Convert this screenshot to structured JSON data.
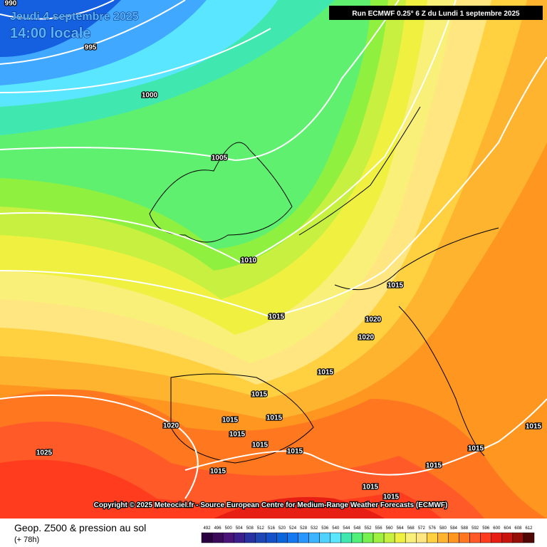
{
  "header": {
    "date": "Jeudi 4 septembre 2025",
    "time": "14:00 locale"
  },
  "run": "Run ECMWF 0.25° 6 Z du Lundi 1 septembre 2025",
  "copyright": "Copyright © 2025 Meteociel.fr - Source European Centre for Medium-Range Weather Forecasts (ECMWF)",
  "footer": {
    "title": "Geop. Z500 & pression au sol",
    "lead": "(+ 78h)"
  },
  "isobar_labels": [
    "990",
    "995",
    "1000",
    "1005",
    "1010",
    "1015",
    "1015",
    "1020",
    "1020",
    "1015",
    "1015",
    "1015",
    "1015",
    "1015",
    "1020",
    "1025",
    "1015",
    "1015",
    "1015",
    "1015",
    "1015",
    "1015",
    "1015",
    "1015"
  ],
  "colorbar": {
    "labels": [
      492,
      496,
      500,
      504,
      508,
      512,
      516,
      520,
      524,
      528,
      532,
      536,
      540,
      544,
      548,
      552,
      556,
      560,
      564,
      568,
      572,
      576,
      580,
      584,
      588,
      592,
      596,
      600,
      604,
      608,
      612
    ],
    "colors": [
      "#2a0040",
      "#3c0a5a",
      "#4b1478",
      "#3c1e8c",
      "#2832a0",
      "#1e46b4",
      "#1450c8",
      "#0a64dc",
      "#1478f0",
      "#2896ff",
      "#3cb4ff",
      "#50d2ff",
      "#5ae6ff",
      "#40e8b0",
      "#50f07a",
      "#78f050",
      "#a0f040",
      "#c8f040",
      "#f0f040",
      "#f8f078",
      "#ffe680",
      "#ffd040",
      "#ffb430",
      "#ff9620",
      "#ff7820",
      "#ff5a28",
      "#ff3c1e",
      "#e61e14",
      "#c8140a",
      "#961008",
      "#500804"
    ]
  }
}
